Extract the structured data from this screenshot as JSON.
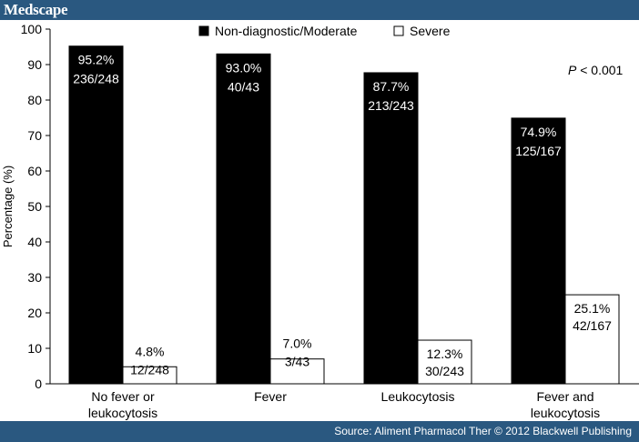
{
  "brand": "Medscape",
  "source": "Source: Aliment Pharmacol Ther © 2012 Blackwell Publishing",
  "chart_data": {
    "type": "bar",
    "title": "",
    "xlabel": "",
    "ylabel": "Percentage (%)",
    "ylim": [
      0,
      100
    ],
    "yticks": [
      0,
      10,
      20,
      30,
      40,
      50,
      60,
      70,
      80,
      90,
      100
    ],
    "categories": [
      [
        "No fever or",
        "leukocytosis"
      ],
      [
        "Fever"
      ],
      [
        "Leukocytosis"
      ],
      [
        "Fever and",
        "leukocytosis"
      ]
    ],
    "series": [
      {
        "name": "Non-diagnostic/Moderate",
        "color": "#000000",
        "values": [
          95.2,
          93.0,
          87.7,
          74.9
        ],
        "labels": [
          [
            "95.2%",
            "236/248"
          ],
          [
            "93.0%",
            "40/43"
          ],
          [
            "87.7%",
            "213/243"
          ],
          [
            "74.9%",
            "125/167"
          ]
        ]
      },
      {
        "name": "Severe",
        "color": "#ffffff",
        "values": [
          4.8,
          7.0,
          12.3,
          25.1
        ],
        "labels": [
          [
            "4.8%",
            "12/248"
          ],
          [
            "7.0%",
            "3/43"
          ],
          [
            "12.3%",
            "30/243"
          ],
          [
            "25.1%",
            "42/167"
          ]
        ]
      }
    ],
    "annotation": {
      "italic": "P",
      "text": " < 0.001"
    },
    "legend_position": "top-center"
  }
}
